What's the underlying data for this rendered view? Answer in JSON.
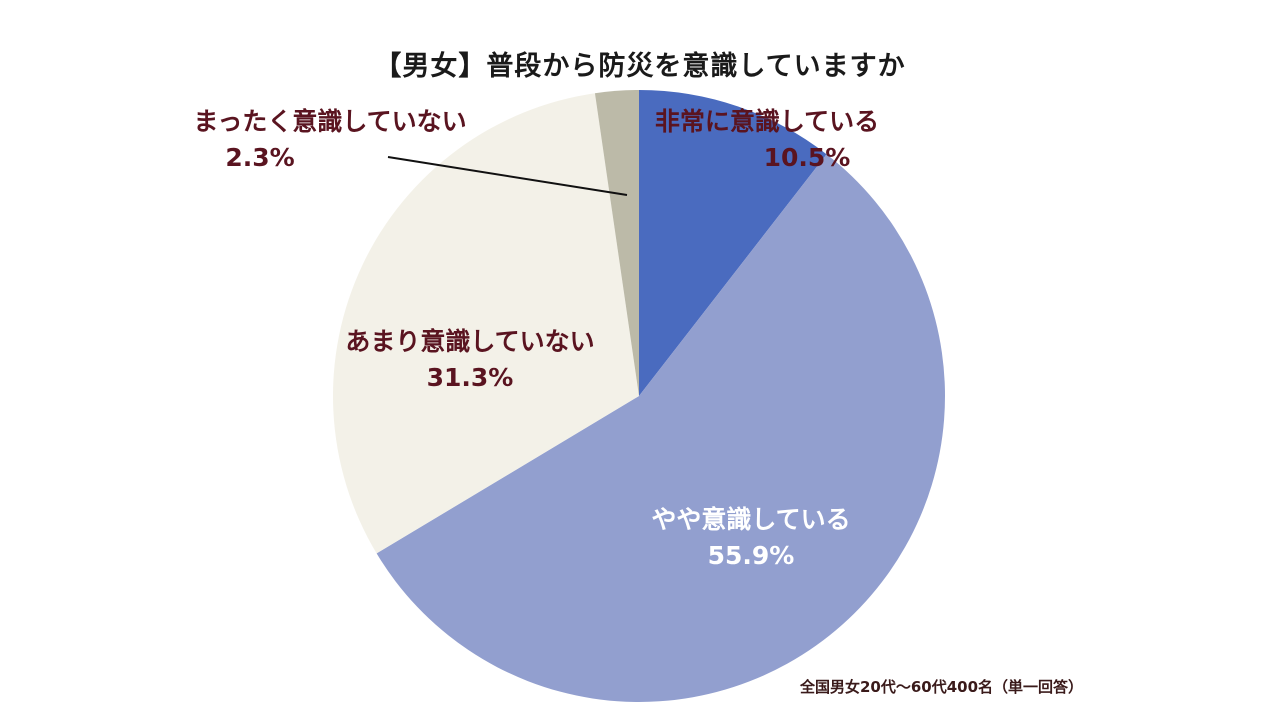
{
  "chart_data": {
    "type": "pie",
    "title": "【男女】普段から防災を意識していますか",
    "categories": [
      "非常に意識している",
      "やや意識している",
      "あまり意識していない",
      "まったく意識していない"
    ],
    "values": [
      10.5,
      55.9,
      31.3,
      2.3
    ],
    "unit": "%",
    "colors": [
      "#4a6bbf",
      "#929fcf",
      "#f3f1e8",
      "#bcbaa8"
    ],
    "start_angle": "12 o'clock, clockwise",
    "labels": [
      "10.5%",
      "55.9%",
      "31.3%",
      "2.3%"
    ],
    "note": "全国男女20代〜60代400名（単一回答）"
  }
}
